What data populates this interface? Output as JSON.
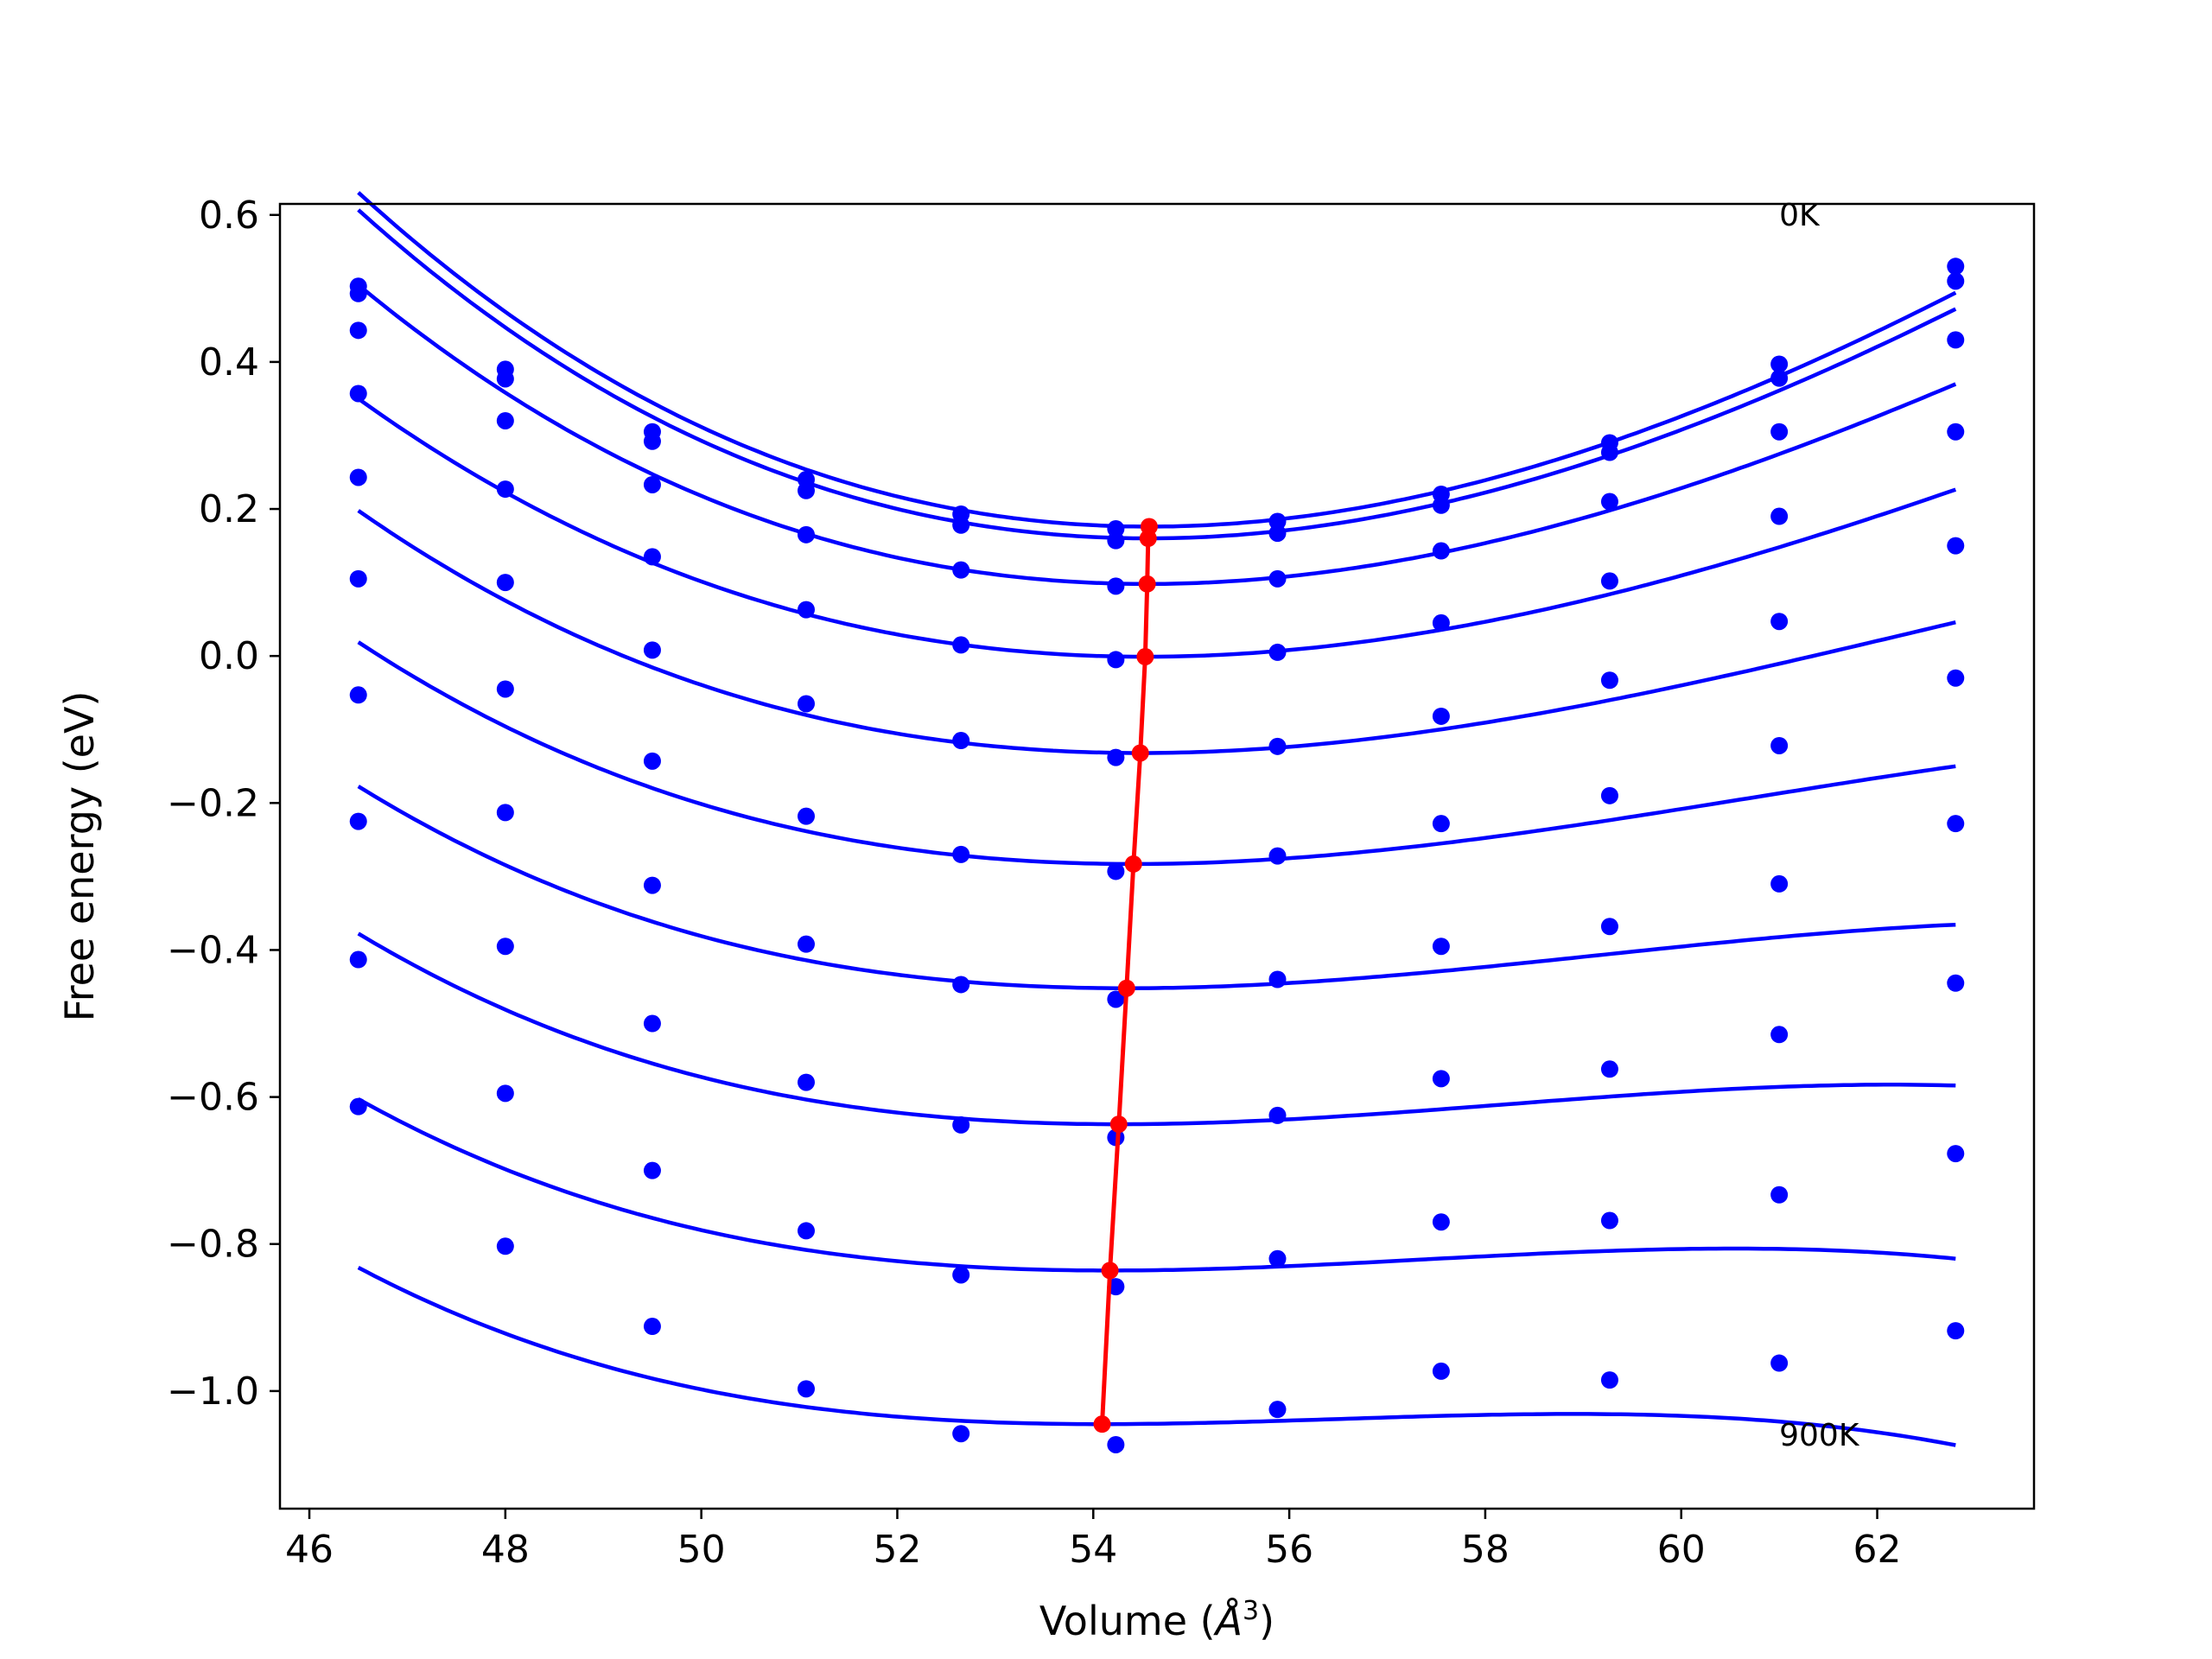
{
  "chart_data": {
    "type": "scatter",
    "title": "",
    "xlabel": "Volume (Å³)",
    "xlabel_parts": {
      "text": "Volume (",
      "symbol": "Å",
      "exponent": "3",
      "close": ")"
    },
    "ylabel": "Free energy (eV)",
    "xlim": [
      45.7,
      63.6
    ],
    "ylim": [
      -1.16,
      0.615
    ],
    "xticks": [
      46,
      48,
      50,
      52,
      54,
      56,
      58,
      60,
      62
    ],
    "yticks": [
      0.6,
      0.4,
      0.2,
      0.0,
      -0.2,
      -0.4,
      -0.6,
      -0.8,
      -1.0
    ],
    "ytick_labels": [
      "0.6",
      "0.4",
      "0.2",
      "0.0",
      "−0.2",
      "−0.4",
      "−0.6",
      "−0.8",
      "−1.0"
    ],
    "grid": false,
    "annotations": [
      {
        "text": "0K",
        "x": 61.0,
        "y": 0.6
      },
      {
        "text": "900K",
        "x": 61.0,
        "y": -1.06
      }
    ],
    "colors": {
      "points": "#0000ff",
      "fits": "#0000ff",
      "minimum_line": "#ff0000"
    },
    "x": [
      46.5,
      48.0,
      49.5,
      51.07,
      52.65,
      54.23,
      55.88,
      57.55,
      59.27,
      61.0,
      62.8
    ],
    "series": [
      {
        "values": [
          0.503,
          0.39,
          0.305,
          0.24,
          0.193,
          0.173,
          0.183,
          0.22,
          0.29,
          0.397,
          0.53
        ],
        "fit": {
          "v0": 54.57,
          "e0": 0.176,
          "a": 0.00585,
          "b": 0.00014
        }
      },
      {
        "values": [
          0.493,
          0.377,
          0.292,
          0.225,
          0.178,
          0.157,
          0.167,
          0.205,
          0.277,
          0.378,
          0.51
        ],
        "fit": {
          "v0": 54.56,
          "e0": 0.16,
          "a": 0.00575,
          "b": 0.00014
        }
      },
      {
        "values": [
          0.443,
          0.32,
          0.233,
          0.165,
          0.117,
          0.095,
          0.105,
          0.143,
          0.21,
          0.305,
          0.43
        ],
        "fit": {
          "v0": 54.55,
          "e0": 0.098,
          "a": 0.00515,
          "b": 0.00014
        }
      },
      {
        "values": [
          0.357,
          0.227,
          0.135,
          0.063,
          0.015,
          -0.005,
          0.005,
          0.045,
          0.102,
          0.19,
          0.305
        ],
        "fit": {
          "v0": 54.53,
          "e0": -0.001,
          "a": 0.0044,
          "b": 0.00013
        }
      },
      {
        "values": [
          0.243,
          0.1,
          0.008,
          -0.065,
          -0.115,
          -0.138,
          -0.123,
          -0.082,
          -0.033,
          0.047,
          0.15
        ],
        "fit": {
          "v0": 54.48,
          "e0": -0.132,
          "a": 0.0039,
          "b": 0.00016
        }
      },
      {
        "values": [
          0.105,
          -0.045,
          -0.143,
          -0.218,
          -0.27,
          -0.293,
          -0.272,
          -0.228,
          -0.19,
          -0.122,
          -0.03
        ],
        "fit": {
          "v0": 54.41,
          "e0": -0.283,
          "a": 0.0034,
          "b": 0.00018
        }
      },
      {
        "values": [
          -0.053,
          -0.213,
          -0.312,
          -0.392,
          -0.447,
          -0.467,
          -0.44,
          -0.395,
          -0.368,
          -0.31,
          -0.228
        ],
        "fit": {
          "v0": 54.34,
          "e0": -0.452,
          "a": 0.0029,
          "b": 0.0002
        }
      },
      {
        "values": [
          -0.225,
          -0.395,
          -0.5,
          -0.58,
          -0.638,
          -0.655,
          -0.625,
          -0.575,
          -0.562,
          -0.515,
          -0.445
        ],
        "fit": {
          "v0": 54.26,
          "e0": -0.637,
          "a": 0.0026,
          "b": 0.00022
        }
      },
      {
        "values": [
          -0.413,
          -0.595,
          -0.7,
          -0.782,
          -0.842,
          -0.858,
          -0.82,
          -0.77,
          -0.768,
          -0.733,
          -0.677
        ],
        "fit": {
          "v0": 54.17,
          "e0": -0.836,
          "a": 0.0022,
          "b": 0.00023
        }
      },
      {
        "values": [
          -0.613,
          -0.803,
          -0.912,
          -0.997,
          -1.058,
          -1.073,
          -1.025,
          -0.973,
          -0.985,
          -0.962,
          -0.918
        ],
        "fit": {
          "v0": 54.09,
          "e0": -1.045,
          "a": 0.0018,
          "b": 0.00025
        }
      }
    ],
    "minimum_line": {
      "x": [
        54.57,
        54.56,
        54.55,
        54.53,
        54.48,
        54.41,
        54.34,
        54.26,
        54.17,
        54.09
      ],
      "y": [
        0.176,
        0.16,
        0.098,
        -0.001,
        -0.132,
        -0.283,
        -0.452,
        -0.637,
        -0.836,
        -1.045
      ]
    }
  }
}
